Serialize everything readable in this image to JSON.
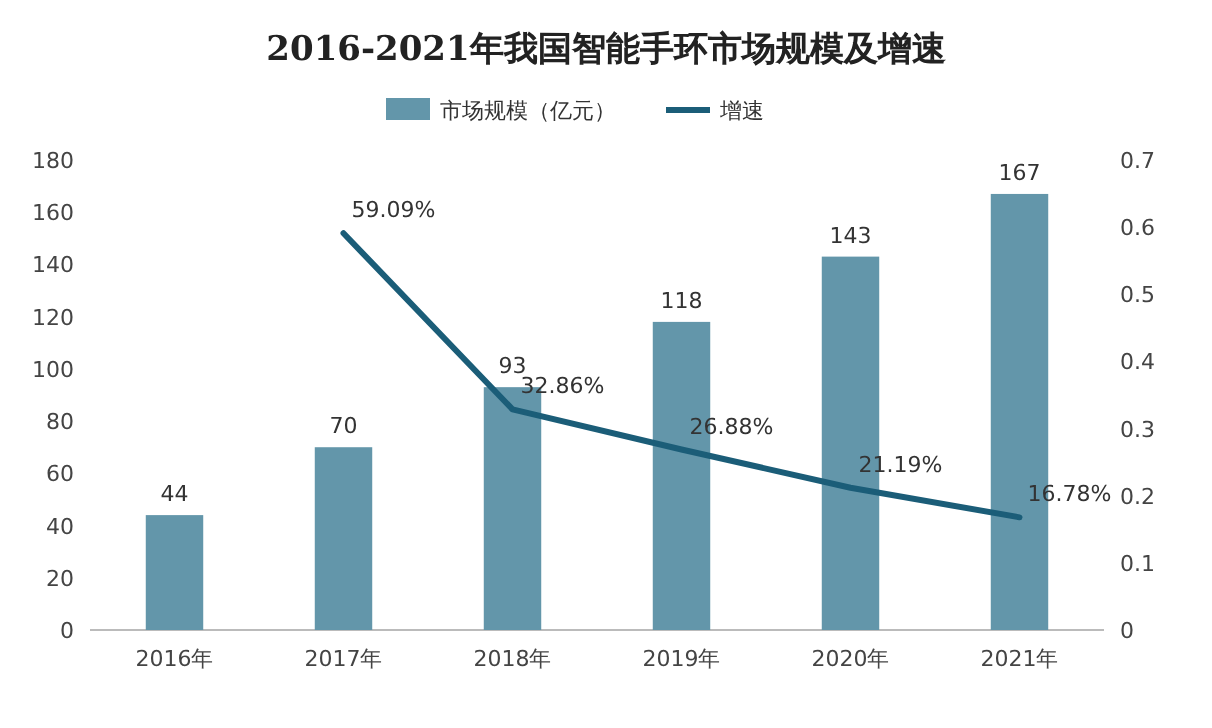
{
  "chart_data": {
    "type": "bar",
    "title": "2016-2021年我国智能手环市场规模及增速",
    "categories": [
      "2016年",
      "2017年",
      "2018年",
      "2019年",
      "2020年",
      "2021年"
    ],
    "series": [
      {
        "name": "市场规模（亿元）",
        "color": "#6396aa",
        "values": [
          44,
          70,
          93,
          118,
          143,
          167
        ],
        "value_labels": [
          "44",
          "70",
          "93",
          "118",
          "143",
          "167"
        ]
      },
      {
        "name": "增速",
        "type": "line",
        "axis": "y2",
        "color": "#1b5d78",
        "values": [
          null,
          0.5909,
          0.3286,
          0.2688,
          0.2119,
          0.1678
        ],
        "value_labels": [
          null,
          "59.09%",
          "32.86%",
          "26.88%",
          "21.19%",
          "16.78%"
        ]
      }
    ],
    "ylim": [
      0,
      180
    ],
    "yticks": [
      0,
      20,
      40,
      60,
      80,
      100,
      120,
      140,
      160,
      180
    ],
    "y2lim": [
      0,
      0.7
    ],
    "y2ticks": [
      0,
      0.1,
      0.2,
      0.3,
      0.4,
      0.5,
      0.6,
      0.7
    ],
    "legend": "top"
  }
}
